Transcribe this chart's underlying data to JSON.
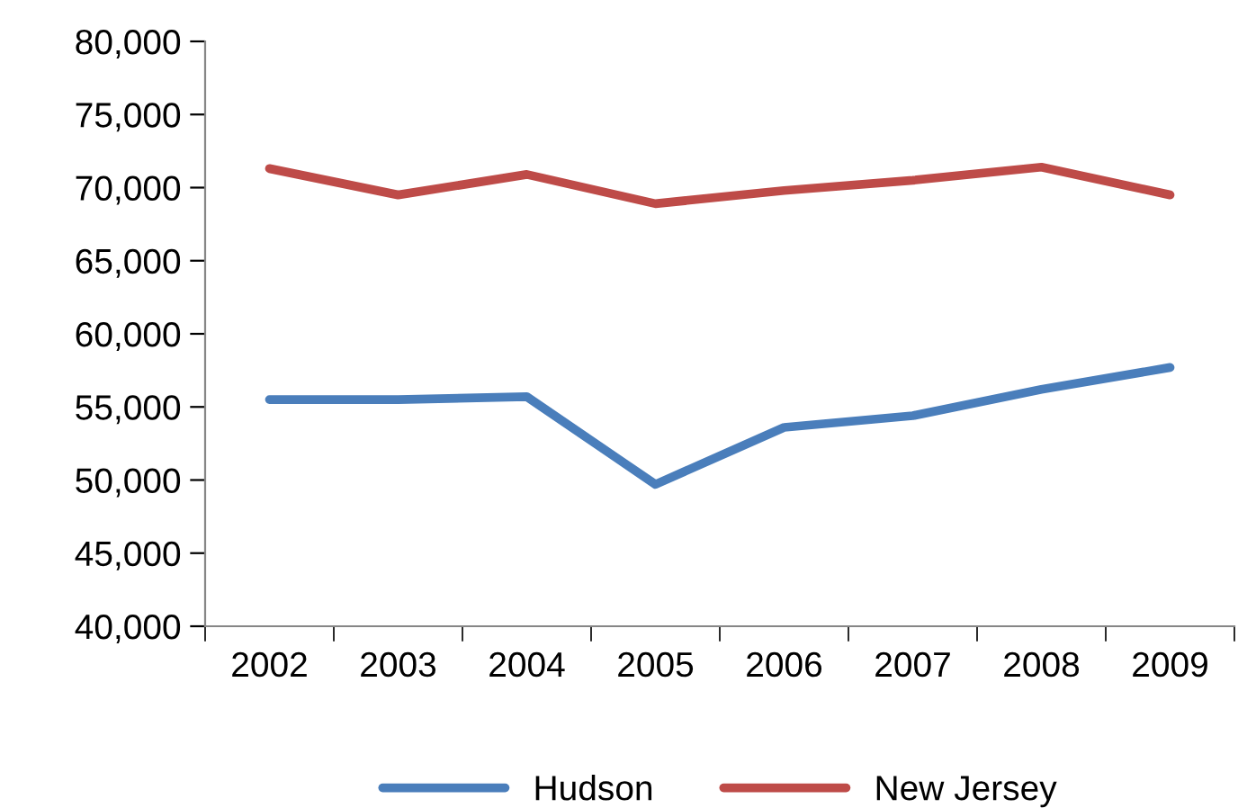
{
  "chart_data": {
    "type": "line",
    "categories": [
      "2002",
      "2003",
      "2004",
      "2005",
      "2006",
      "2007",
      "2008",
      "2009"
    ],
    "series": [
      {
        "name": "Hudson",
        "color": "#4a7ebb",
        "values": [
          55500,
          55500,
          55700,
          49700,
          53600,
          54400,
          56200,
          57700
        ]
      },
      {
        "name": "New Jersey",
        "color": "#be4b48",
        "values": [
          71300,
          69500,
          70900,
          68900,
          69800,
          70500,
          71400,
          69500
        ]
      }
    ],
    "ylim": [
      40000,
      80000
    ],
    "yticks": [
      {
        "value": 40000,
        "label": "40,000"
      },
      {
        "value": 45000,
        "label": "45,000"
      },
      {
        "value": 50000,
        "label": "50,000"
      },
      {
        "value": 55000,
        "label": "55,000"
      },
      {
        "value": 60000,
        "label": "60,000"
      },
      {
        "value": 65000,
        "label": "65,000"
      },
      {
        "value": 70000,
        "label": "70,000"
      },
      {
        "value": 75000,
        "label": "75,000"
      },
      {
        "value": 80000,
        "label": "80,000"
      }
    ],
    "grid": false,
    "legend": "bottom",
    "marker": "none",
    "line_style": "solid"
  }
}
